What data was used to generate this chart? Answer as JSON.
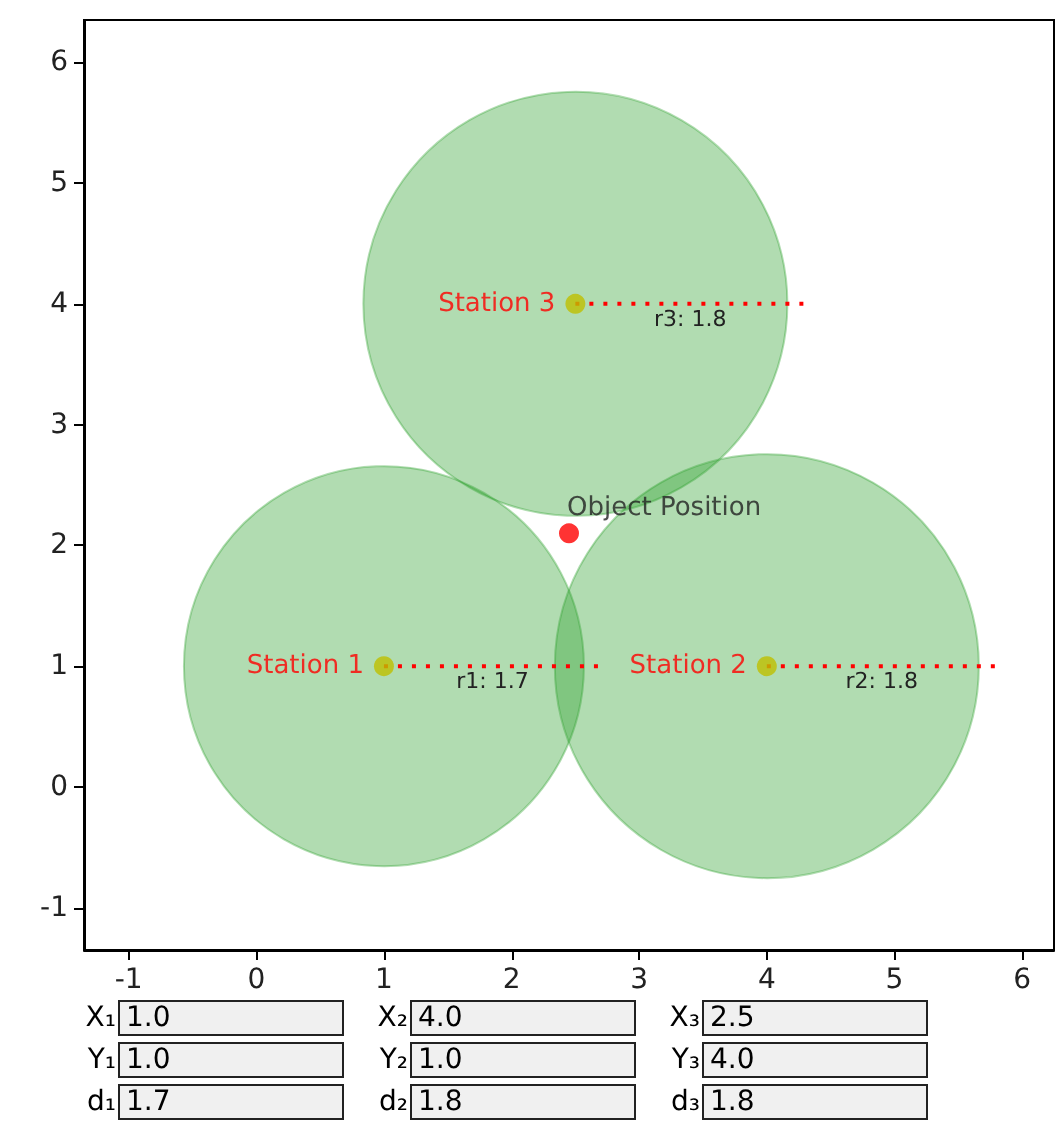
{
  "chart_data": {
    "type": "scatter",
    "xlim": [
      -1.35,
      6.25
    ],
    "ylim": [
      -1.35,
      6.35
    ],
    "xticks": [
      -1,
      0,
      1,
      2,
      3,
      4,
      5,
      6
    ],
    "yticks": [
      -1,
      0,
      1,
      2,
      3,
      4,
      5,
      6
    ],
    "grid": false,
    "series": [
      {
        "type": "bubble",
        "color": "#2ca02c",
        "x": [
          1,
          4,
          2.5
        ],
        "values": [
          1,
          1,
          4
        ],
        "sizes": [
          0.89,
          1,
          1
        ]
      },
      {
        "type": "line",
        "color": "#ff0000",
        "line_style": "dotted",
        "marker": "none",
        "name": "r1: 1.7",
        "x": [
          1,
          2.7
        ],
        "values": [
          1,
          1
        ]
      },
      {
        "type": "line",
        "color": "#ff0000",
        "line_style": "dotted",
        "marker": "none",
        "name": "r2: 1.8",
        "x": [
          4,
          5.8
        ],
        "values": [
          1,
          1
        ]
      },
      {
        "type": "line",
        "color": "#ff0000",
        "line_style": "dotted",
        "marker": "none",
        "name": "r3: 1.8",
        "x": [
          2.5,
          4.3
        ],
        "values": [
          4,
          4
        ]
      },
      {
        "type": "scatter",
        "color": "#bfbf00",
        "marker": "circle",
        "x": [
          1,
          4,
          2.5
        ],
        "values": [
          1,
          1,
          4
        ],
        "value_labels": [
          "Station 1",
          "Station 2",
          "Station 3"
        ]
      },
      {
        "type": "scatter",
        "color": "#ff0000",
        "marker": "circle",
        "x": [
          2.45
        ],
        "values": [
          2.1
        ],
        "value_labels": [
          "Object Position"
        ]
      }
    ],
    "annotations": [
      "X₁",
      "1.0",
      "X₂",
      "4.0",
      "X₃",
      "2.5",
      "Y₁",
      "1.0",
      "Y₂",
      "1.0",
      "Y₃",
      "4.0",
      "d₁",
      "1.7",
      "d₂",
      "1.8",
      "d₃",
      "1.8"
    ]
  }
}
